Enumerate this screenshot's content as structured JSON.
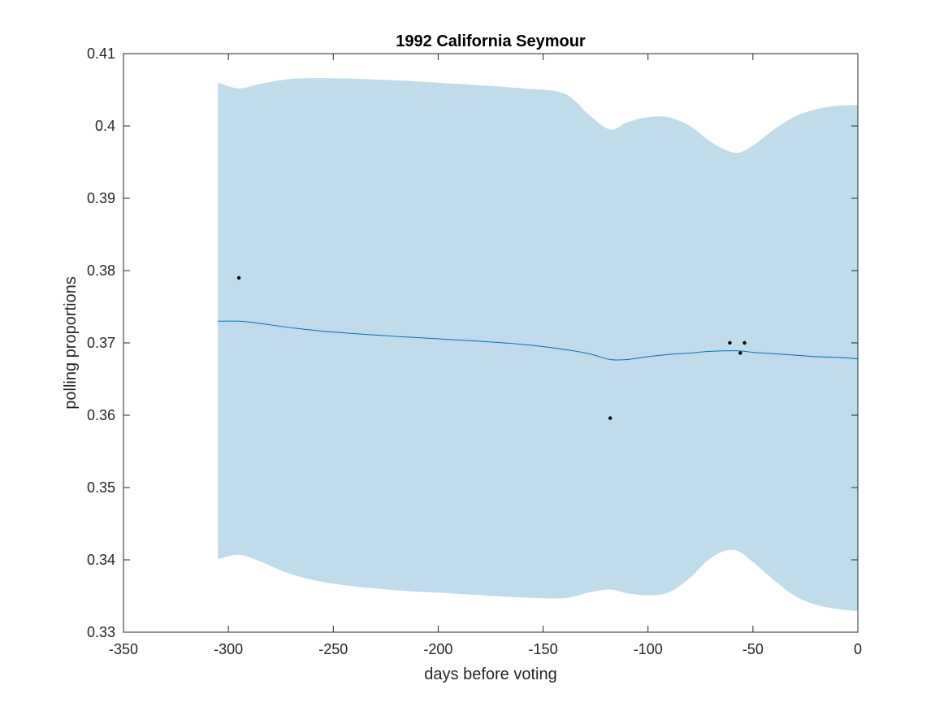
{
  "chart_data": {
    "type": "line",
    "title": "1992 California Seymour",
    "xlabel": "days before voting",
    "ylabel": "polling proportions",
    "xlim": [
      -350,
      0
    ],
    "ylim": [
      0.33,
      0.41
    ],
    "xticks": [
      -350,
      -300,
      -250,
      -200,
      -150,
      -100,
      -50,
      0
    ],
    "yticks": [
      0.33,
      0.34,
      0.35,
      0.36,
      0.37,
      0.38,
      0.39,
      0.4,
      0.41
    ],
    "xtick_labels": [
      "-350",
      "-300",
      "-250",
      "-200",
      "-150",
      "-100",
      "-50",
      "0"
    ],
    "ytick_labels": [
      "0.33",
      "0.34",
      "0.35",
      "0.36",
      "0.37",
      "0.38",
      "0.39",
      "0.4",
      "0.41"
    ],
    "grid": false,
    "colors": {
      "band": "#c0dcea",
      "line": "#0072bd",
      "points": "#000000",
      "axes": "#262626"
    },
    "band": {
      "x": [
        -305,
        -295,
        -285,
        -270,
        -250,
        -220,
        -190,
        -160,
        -140,
        -128,
        -118,
        -110,
        -100,
        -90,
        -80,
        -72,
        -64,
        -57,
        -50,
        -40,
        -30,
        -20,
        -10,
        0
      ],
      "upper": [
        0.406,
        0.4052,
        0.4058,
        0.4065,
        0.4066,
        0.4063,
        0.4058,
        0.4052,
        0.4045,
        0.4015,
        0.3995,
        0.4005,
        0.4012,
        0.4012,
        0.4,
        0.3982,
        0.3968,
        0.3963,
        0.3973,
        0.3995,
        0.4013,
        0.4023,
        0.4028,
        0.4029
      ],
      "lower": [
        0.3401,
        0.3407,
        0.3398,
        0.338,
        0.3367,
        0.3358,
        0.3353,
        0.3348,
        0.3347,
        0.3355,
        0.3359,
        0.3354,
        0.3351,
        0.3355,
        0.3375,
        0.3398,
        0.3412,
        0.3412,
        0.3397,
        0.3372,
        0.335,
        0.3338,
        0.3332,
        0.3329
      ]
    },
    "series": [
      {
        "type": "line",
        "x": [
          -305,
          -295,
          -285,
          -270,
          -250,
          -220,
          -190,
          -160,
          -140,
          -128,
          -118,
          -110,
          -100,
          -90,
          -80,
          -72,
          -64,
          -57,
          -50,
          -40,
          -30,
          -20,
          -10,
          0
        ],
        "values": [
          0.373,
          0.373,
          0.3727,
          0.3721,
          0.3715,
          0.3709,
          0.3704,
          0.3698,
          0.3691,
          0.3685,
          0.3677,
          0.3677,
          0.3681,
          0.3684,
          0.3686,
          0.3688,
          0.3689,
          0.3689,
          0.3687,
          0.3685,
          0.3683,
          0.3681,
          0.368,
          0.3678
        ]
      },
      {
        "type": "scatter",
        "x": [
          -295,
          -118,
          -61,
          -54,
          -56
        ],
        "values": [
          0.379,
          0.3596,
          0.37,
          0.37,
          0.3686
        ]
      }
    ]
  }
}
